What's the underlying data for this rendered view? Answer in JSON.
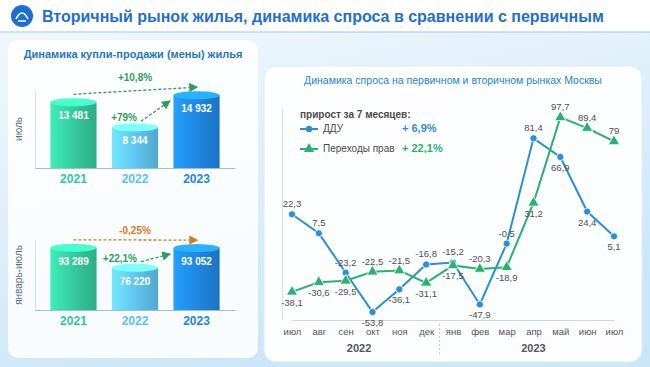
{
  "header": {
    "title": "Вторичный рынок жилья, динамика спроса в сравнении с первичным"
  },
  "chart_data": [
    {
      "type": "bar",
      "title": "Динамика купли-продажи (мены) жилья",
      "y_label": "июль",
      "categories": [
        "2021",
        "2022",
        "2023"
      ],
      "values": [
        13481,
        8344,
        14932
      ],
      "value_labels": [
        "13 481",
        "8 344",
        "14 932"
      ],
      "colors": [
        "#34c79b",
        "#5fc2ee",
        "#1f86e0"
      ],
      "ylim": [
        0,
        16000
      ],
      "data_labels": true,
      "tick_labels": "x",
      "annotations": [
        {
          "text": "+10,8%",
          "from": "2021",
          "to": "2023",
          "color": "#2f9e57"
        },
        {
          "text": "+79%",
          "from": "2022",
          "to": "2023",
          "color": "#2f9e57"
        }
      ]
    },
    {
      "type": "bar",
      "y_label": "январь-июль",
      "categories": [
        "2021",
        "2022",
        "2023"
      ],
      "values": [
        93289,
        76220,
        93052
      ],
      "value_labels": [
        "93 289",
        "76 220",
        "93 052"
      ],
      "colors": [
        "#34c79b",
        "#5fc2ee",
        "#1f86e0"
      ],
      "ylim": [
        40000,
        100000
      ],
      "data_labels": true,
      "tick_labels": "x",
      "annotations": [
        {
          "text": "-0,25%",
          "from": "2021",
          "to": "2023",
          "color": "#e0761b"
        },
        {
          "text": "+22,1%",
          "from": "2022",
          "to": "2023",
          "color": "#2f9e57"
        }
      ]
    },
    {
      "type": "line",
      "title": "Динамика спроса на первичном и вторичном рынках Москвы",
      "legend_title": "прирост за 7 месяцев:",
      "legend": "top-left",
      "categories": [
        "июл",
        "авг",
        "сен",
        "окт",
        "ноя",
        "дек",
        "янв",
        "фев",
        "мар",
        "апр",
        "май",
        "июн",
        "июл"
      ],
      "x_groups": [
        {
          "label": "2022",
          "count": 6
        },
        {
          "label": "2023",
          "count": 7
        }
      ],
      "ylim": [
        -60,
        105
      ],
      "data_labels": true,
      "tick_labels": "x",
      "series": [
        {
          "name": "ДДУ",
          "color": "#2b8fd6",
          "marker": "circle",
          "growth": "+ 6,9%",
          "values": [
            22.3,
            7.5,
            -23.2,
            -53.8,
            -36.1,
            -16.8,
            -15.2,
            -47.9,
            -0.5,
            81.4,
            66.9,
            24.4,
            5.1
          ],
          "value_labels": [
            "22,3",
            "7,5",
            "-23,2",
            "-53,8",
            "-36,1",
            "-16,8",
            "-15,2",
            "-47,9",
            "-0,5",
            "81,4",
            "66,9",
            "24,4",
            "5,1"
          ]
        },
        {
          "name": "Переходы прав",
          "color": "#27b36f",
          "marker": "triangle",
          "growth": "+ 22,1%",
          "values": [
            -38.1,
            -30.6,
            -29.5,
            -22.5,
            -21.5,
            -31.1,
            -17.5,
            -20.3,
            -18.9,
            31.2,
            97.7,
            89.4,
            79
          ],
          "value_labels": [
            "-38,1",
            "-30,6",
            "-29,5",
            "-22,5",
            "-21,5",
            "-31,1",
            "-17,5",
            "-20,3",
            "-18,9",
            "31,2",
            "97,7",
            "89,4",
            "79"
          ]
        }
      ]
    }
  ]
}
